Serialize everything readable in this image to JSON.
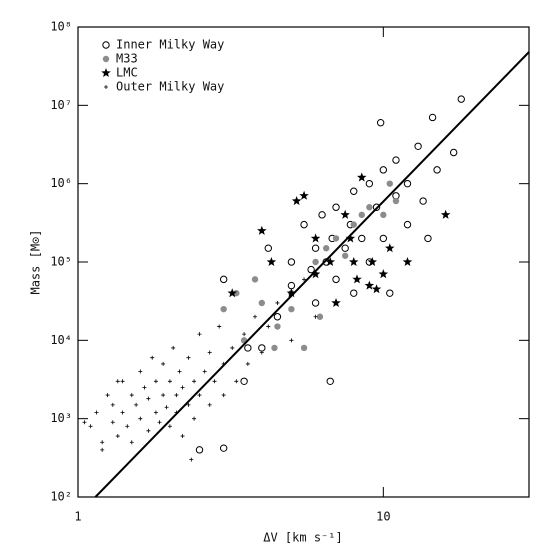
{
  "chart_data": {
    "type": "scatter",
    "x_label": "ΔV [km s⁻¹]",
    "y_label": "Mass [M⊙]",
    "log_x": true,
    "log_y": true,
    "xlim": [
      1,
      30
    ],
    "ylim": [
      100,
      100000000
    ],
    "xticks": [
      1,
      10
    ],
    "yticks": [
      {
        "value": 100,
        "label": "10²"
      },
      {
        "value": 1000,
        "label": "10³"
      },
      {
        "value": 10000,
        "label": "10⁴"
      },
      {
        "value": 100000,
        "label": "10⁵"
      },
      {
        "value": 1000000,
        "label": "10⁶"
      },
      {
        "value": 10000000,
        "label": "10⁷"
      },
      {
        "value": 100000000,
        "label": "10⁸"
      }
    ],
    "legend": "upper left",
    "series": [
      {
        "name": "Inner Milky Way",
        "marker": "open-circle",
        "color": "#000000",
        "x": [
          2.5,
          3,
          3,
          3.5,
          4,
          4.2,
          4.5,
          5,
          5,
          5.5,
          5.8,
          6,
          6,
          6.3,
          6.5,
          6.8,
          7,
          7,
          7.5,
          7.8,
          8,
          8,
          8.5,
          9,
          9,
          9.5,
          9.8,
          10,
          10,
          10.5,
          11,
          11,
          12,
          12,
          13,
          13.5,
          14,
          14.5,
          15,
          17,
          18,
          6.7,
          3.6
        ],
        "values": [
          400,
          420,
          60000,
          3000,
          8000,
          150000,
          20000,
          50000,
          100000,
          300000,
          80000,
          150000,
          30000,
          400000,
          100000,
          200000,
          500000,
          60000,
          150000,
          300000,
          800000,
          40000,
          200000,
          1000000,
          100000,
          500000,
          6000000,
          200000,
          1500000,
          40000,
          2000000,
          700000,
          300000,
          1000000,
          3000000,
          600000,
          200000,
          7000000,
          1500000,
          2500000,
          12000000,
          3000,
          8000
        ]
      },
      {
        "name": "M33",
        "marker": "filled-circle",
        "color": "#8c8c8c",
        "x": [
          3,
          3.3,
          3.5,
          3.8,
          4,
          4.5,
          5,
          5,
          5.5,
          6,
          6.5,
          7,
          7.5,
          8,
          8.5,
          9,
          10,
          10.5,
          11,
          4.4,
          6.2
        ],
        "values": [
          25000,
          40000,
          10000,
          60000,
          30000,
          15000,
          25000,
          40000,
          8000,
          100000,
          150000,
          200000,
          120000,
          300000,
          400000,
          500000,
          400000,
          1000000,
          600000,
          8000,
          20000
        ]
      },
      {
        "name": "LMC",
        "marker": "star",
        "color": "#000000",
        "x": [
          3.2,
          4,
          4.3,
          5,
          5.2,
          6,
          6,
          6.7,
          7,
          7.5,
          8,
          8.2,
          9,
          9.2,
          9.5,
          10,
          10.5,
          12,
          16,
          8.5,
          5.5,
          7.8
        ],
        "values": [
          40000,
          250000,
          100000,
          40000,
          600000,
          200000,
          70000,
          100000,
          30000,
          400000,
          100000,
          60000,
          50000,
          100000,
          45000,
          70000,
          150000,
          100000,
          400000,
          1200000,
          700000,
          200000
        ]
      },
      {
        "name": "Outer Milky Way",
        "marker": "plus",
        "color": "#000000",
        "x": [
          1.1,
          1.15,
          1.2,
          1.25,
          1.3,
          1.3,
          1.35,
          1.4,
          1.4,
          1.45,
          1.5,
          1.5,
          1.55,
          1.6,
          1.6,
          1.65,
          1.7,
          1.7,
          1.75,
          1.8,
          1.8,
          1.85,
          1.9,
          1.9,
          1.95,
          2,
          2,
          2.05,
          2.1,
          2.1,
          2.15,
          2.2,
          2.2,
          2.3,
          2.3,
          2.4,
          2.4,
          2.5,
          2.5,
          2.6,
          2.7,
          2.7,
          2.8,
          2.9,
          3,
          3,
          3.2,
          3.3,
          3.5,
          3.6,
          3.8,
          4,
          4.2,
          4.5,
          5,
          5.5,
          6,
          1.2,
          1.35,
          2.35,
          1.05
        ],
        "values": [
          800,
          1200,
          400,
          2000,
          900,
          1500,
          600,
          3000,
          1200,
          800,
          2000,
          500,
          1500,
          4000,
          1000,
          2500,
          700,
          1800,
          6000,
          1200,
          3000,
          900,
          2000,
          5000,
          1400,
          800,
          3000,
          8000,
          2000,
          1200,
          4000,
          600,
          2500,
          1500,
          6000,
          3000,
          1000,
          2000,
          12000,
          4000,
          1500,
          7000,
          3000,
          15000,
          5000,
          2000,
          8000,
          3000,
          12000,
          5000,
          20000,
          7000,
          15000,
          30000,
          10000,
          60000,
          20000,
          500,
          3000,
          300,
          900
        ]
      }
    ],
    "fit_line": {
      "x": [
        1.14,
        30
      ],
      "values": [
        100,
        48000000
      ]
    }
  }
}
